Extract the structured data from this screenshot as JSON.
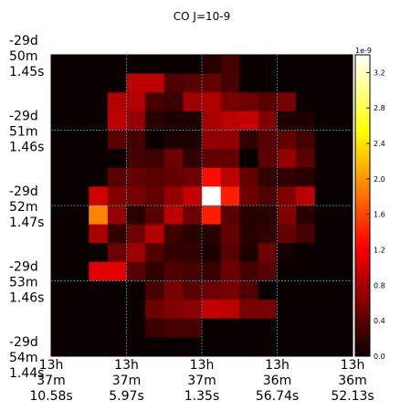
{
  "chart_data": {
    "type": "heatmap",
    "title": "CO J=10-9",
    "x_ticks": [
      "13h\n37m\n10.58s",
      "13h\n37m\n5.97s",
      "13h\n37m\n1.35s",
      "13h\n36m\n56.74s",
      "13h\n36m\n52.13s"
    ],
    "y_ticks": [
      "-29d\n50m\n1.45s",
      "-29d\n51m\n1.46s",
      "-29d\n52m\n1.47s",
      "-29d\n53m\n1.46s",
      "-29d\n54m\n1.44s"
    ],
    "colorbar": {
      "exponent_label": "1e-9",
      "min": 0.0,
      "max": 3.4,
      "ticks": [
        0.0,
        0.4,
        0.8,
        1.2,
        1.6,
        2.0,
        2.4,
        2.8,
        3.2
      ],
      "colormap": "hot"
    },
    "grid": true,
    "grid_color": "#00bcd4",
    "grid_style": "dotted",
    "value_scale": "1e-9",
    "rows": 16,
    "cols": 16,
    "values": [
      [
        0.0,
        0.0,
        0.0,
        0.0,
        0.0,
        0.0,
        0.0,
        0.0,
        0.15,
        0.3,
        0.0,
        0.0,
        0.0,
        0.0,
        0.0,
        0.0
      ],
      [
        0.0,
        0.0,
        0.0,
        0.0,
        0.9,
        0.9,
        0.35,
        0.4,
        0.45,
        0.3,
        0.0,
        0.0,
        0.0,
        0.0,
        0.0,
        0.0
      ],
      [
        0.0,
        0.0,
        0.0,
        0.85,
        0.85,
        0.3,
        0.25,
        0.75,
        0.85,
        0.55,
        0.5,
        0.4,
        0.55,
        0.0,
        0.0,
        0.0
      ],
      [
        0.0,
        0.0,
        0.0,
        0.9,
        0.7,
        0.15,
        0.1,
        0.1,
        0.8,
        0.9,
        0.95,
        0.6,
        0.1,
        0.1,
        0.0,
        0.0
      ],
      [
        0.0,
        0.0,
        0.0,
        0.4,
        0.3,
        0.0,
        0.1,
        0.1,
        0.7,
        0.7,
        0.2,
        0.4,
        0.45,
        0.3,
        0.0,
        0.0
      ],
      [
        0.0,
        0.0,
        0.0,
        0.0,
        0.3,
        0.25,
        0.5,
        0.2,
        0.45,
        0.45,
        0.0,
        0.4,
        0.7,
        0.4,
        0.0,
        0.0
      ],
      [
        0.0,
        0.0,
        0.0,
        0.4,
        0.45,
        0.4,
        0.45,
        0.5,
        1.3,
        0.9,
        0.45,
        0.2,
        0.2,
        0.15,
        0.0,
        0.0
      ],
      [
        0.0,
        0.0,
        1.0,
        0.6,
        0.55,
        0.45,
        0.7,
        0.95,
        3.4,
        1.4,
        0.5,
        0.35,
        0.6,
        0.9,
        0.0,
        0.0
      ],
      [
        0.0,
        0.0,
        1.9,
        0.7,
        0.15,
        0.4,
        0.9,
        0.5,
        1.4,
        0.4,
        0.15,
        0.15,
        0.6,
        0.15,
        0.0,
        0.0
      ],
      [
        0.0,
        0.0,
        0.8,
        0.2,
        0.5,
        0.85,
        0.25,
        0.15,
        0.15,
        0.45,
        0.15,
        0.2,
        0.45,
        0.3,
        0.0,
        0.0
      ],
      [
        0.0,
        0.0,
        0.0,
        0.5,
        0.75,
        0.35,
        0.2,
        0.2,
        0.1,
        0.4,
        0.1,
        0.5,
        0.05,
        0.0,
        0.0,
        0.0
      ],
      [
        0.0,
        0.0,
        1.1,
        1.1,
        0.4,
        0.2,
        0.35,
        0.3,
        0.25,
        0.5,
        0.3,
        0.4,
        0.0,
        0.0,
        0.0,
        0.0
      ],
      [
        0.0,
        0.0,
        0.0,
        0.0,
        0.0,
        0.3,
        0.55,
        0.4,
        0.5,
        0.55,
        0.35,
        0.0,
        0.0,
        0.0,
        0.0,
        0.0
      ],
      [
        0.0,
        0.0,
        0.0,
        0.0,
        0.0,
        0.5,
        0.6,
        0.65,
        0.95,
        0.9,
        0.55,
        0.55,
        0.0,
        0.0,
        0.0,
        0.0
      ],
      [
        0.0,
        0.0,
        0.0,
        0.0,
        0.0,
        0.25,
        0.3,
        0.3,
        0.0,
        0.0,
        0.0,
        0.0,
        0.0,
        0.0,
        0.0,
        0.0
      ],
      [
        0.0,
        0.0,
        0.0,
        0.0,
        0.0,
        0.0,
        0.0,
        0.0,
        0.0,
        0.0,
        0.0,
        0.0,
        0.0,
        0.0,
        0.0,
        0.0
      ]
    ]
  }
}
